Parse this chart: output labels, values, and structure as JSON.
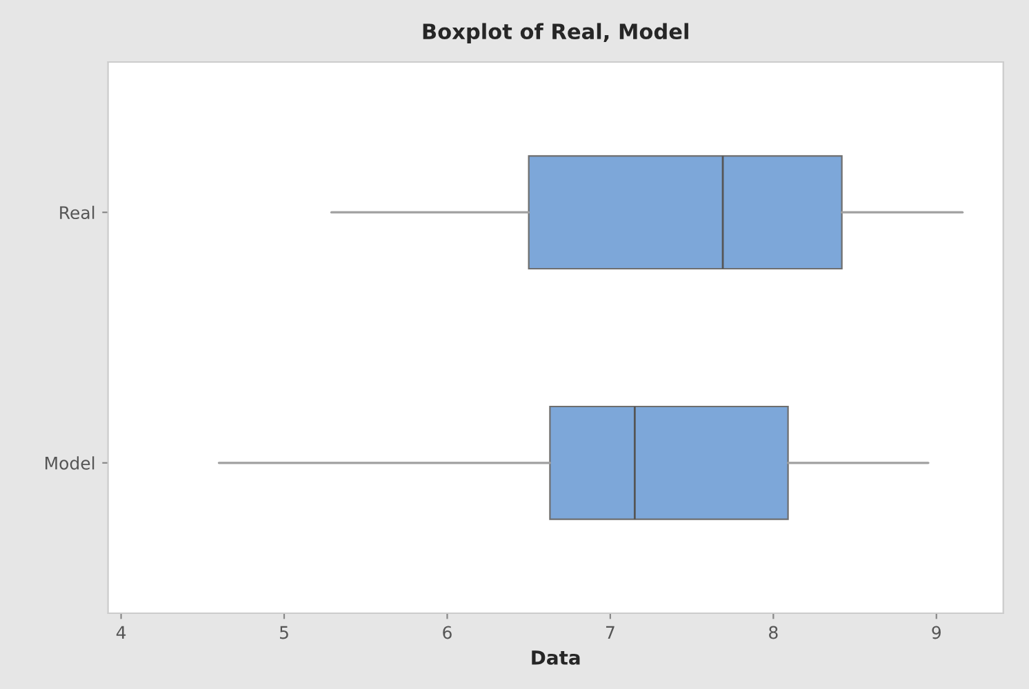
{
  "chart_data": {
    "type": "box",
    "title": "Boxplot of Real, Model",
    "xlabel": "Data",
    "orientation": "horizontal",
    "categories": [
      "Real",
      "Model"
    ],
    "boxes": [
      {
        "low": 5.29,
        "q1": 6.5,
        "median": 7.69,
        "q3": 8.42,
        "high": 9.16
      },
      {
        "low": 4.6,
        "q1": 6.63,
        "median": 7.15,
        "q3": 8.09,
        "high": 8.95
      }
    ],
    "color": "#7da7d9",
    "xlim": [
      3.92,
      9.41
    ],
    "xticks": [
      4,
      5,
      6,
      7,
      8,
      9
    ],
    "grid": false,
    "legend": false
  }
}
